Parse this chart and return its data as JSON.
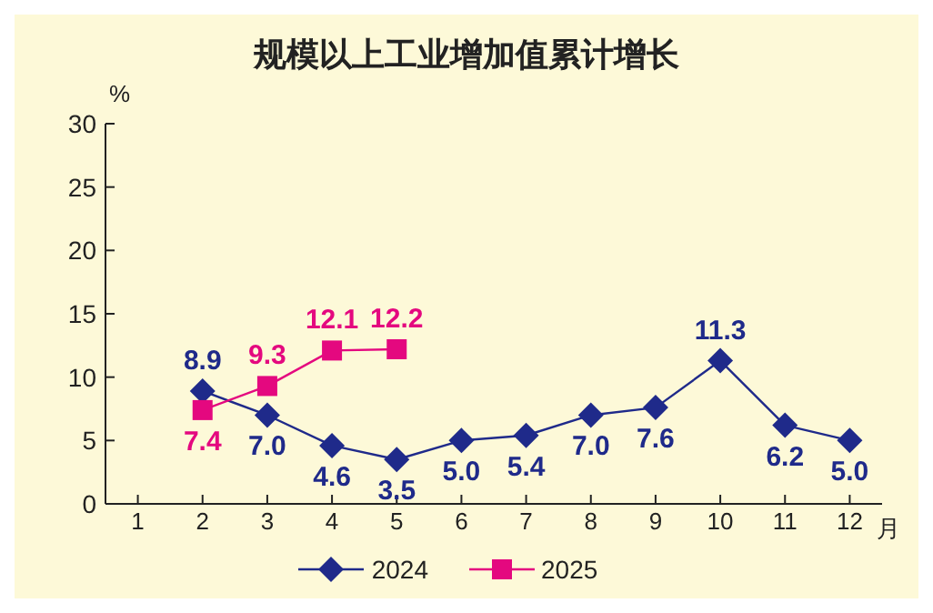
{
  "chart_data": {
    "type": "line",
    "title": "规模以上工业增加值累计增长",
    "ylabel": "%",
    "xlabel": "月",
    "x": [
      2,
      3,
      4,
      5,
      6,
      7,
      8,
      9,
      10,
      11,
      12
    ],
    "xlim": [
      0.5,
      12.5
    ],
    "xticks": [
      1,
      2,
      3,
      4,
      5,
      6,
      7,
      8,
      9,
      10,
      11,
      12
    ],
    "ylim": [
      0,
      30
    ],
    "yticks": [
      0,
      5,
      10,
      15,
      20,
      25,
      30
    ],
    "series": [
      {
        "name": "2024",
        "color": "#1f2a8a",
        "marker": "diamond",
        "values": [
          8.9,
          7.0,
          4.6,
          3.5,
          5.0,
          5.4,
          7.0,
          7.6,
          11.3,
          6.2,
          5.0
        ],
        "value_labels": [
          "8.9",
          "7.0",
          "4.6",
          "3.5",
          "5.0",
          "5.4",
          "7.0",
          "7.6",
          "11.3",
          "6.2",
          "5.0"
        ]
      },
      {
        "name": "2025",
        "color": "#e4087f",
        "marker": "square",
        "values": [
          7.4,
          9.3,
          12.1,
          12.2,
          null,
          null,
          null,
          null,
          null,
          null,
          null
        ],
        "value_labels": [
          "7.4",
          "9.3",
          "12.1",
          "12.2",
          null,
          null,
          null,
          null,
          null,
          null,
          null
        ]
      }
    ],
    "grid": false,
    "legend": "bottom"
  }
}
